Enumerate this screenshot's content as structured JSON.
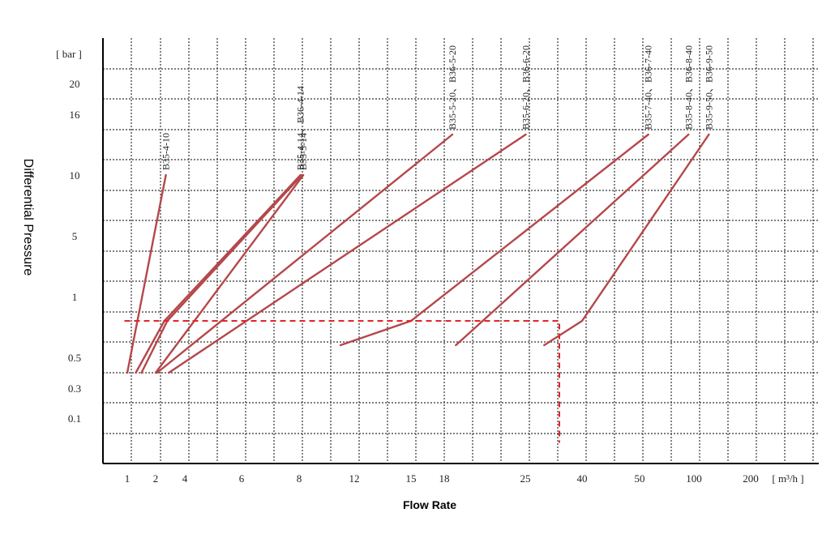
{
  "chart_data": {
    "type": "line",
    "xlabel": "Flow Rate",
    "ylabel": "Differential Pressure",
    "x_unit": "[ m³/h ]",
    "y_unit": "[ bar ]",
    "x_ticks": [
      "1",
      "2",
      "4",
      "6",
      "8",
      "12",
      "15",
      "18",
      "25",
      "40",
      "50",
      "100",
      "200"
    ],
    "y_ticks": [
      "20",
      "16",
      "10",
      "5",
      "1",
      "0.5",
      "0.3",
      "0.1"
    ],
    "grid": true,
    "line_color": "#b5474a",
    "guide_color": "#e0252b",
    "series": [
      {
        "name": "B35-4-10",
        "points": [
          [
            1,
            0.4
          ],
          [
            2.7,
            10
          ]
        ]
      },
      {
        "name": "B35-4-14、B36-4-14",
        "points": [
          [
            1.3,
            0.4
          ],
          [
            2.6,
            0.8
          ],
          [
            8.1,
            10
          ]
        ]
      },
      {
        "name": "B35-4-14、B36-4-14",
        "points": [
          [
            1.5,
            0.4
          ],
          [
            2.8,
            0.8
          ],
          [
            8.2,
            10
          ]
        ]
      },
      {
        "name": "B35-5-14",
        "points": [
          [
            2,
            0.4
          ],
          [
            8.3,
            10
          ]
        ]
      },
      {
        "name": "B35-5-20、B36-5-20",
        "points": [
          [
            2.1,
            0.4
          ],
          [
            18.7,
            14
          ]
        ]
      },
      {
        "name": "B35-6-20、B36-6-20",
        "points": [
          [
            2.9,
            0.4
          ],
          [
            25.1,
            14
          ]
        ]
      },
      {
        "name": "B35-7-40、B36-7-40",
        "points": [
          [
            11,
            0.6
          ],
          [
            15,
            0.8
          ],
          [
            58,
            14
          ]
        ]
      },
      {
        "name": "B35-8-40、B36-8-40",
        "points": [
          [
            19,
            0.6
          ],
          [
            95,
            14
          ]
        ]
      },
      {
        "name": "B35-9-50、B36-9-50",
        "points": [
          [
            30,
            0.6
          ],
          [
            40,
            0.8
          ],
          [
            120,
            14
          ]
        ]
      }
    ],
    "annotations": [
      {
        "type": "guide",
        "points": [
          [
            0.9,
            0.8
          ],
          [
            34,
            0.8
          ],
          [
            34,
            0.02
          ]
        ]
      }
    ]
  }
}
